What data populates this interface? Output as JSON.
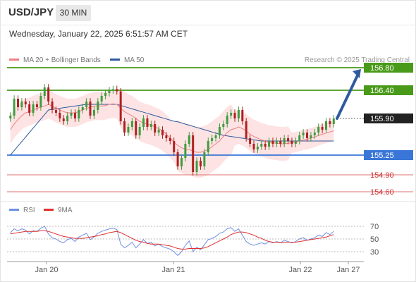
{
  "header": {
    "pair": "USD/JPY",
    "timeframe": "30 MIN"
  },
  "datetime": "Wednesday, January 22, 2025 6:51:57 AM CET",
  "legend": {
    "ma20": "MA 20 + Bollinger Bands",
    "ma50": "MA 50",
    "copyright": "Research © 2025 Trading Central"
  },
  "rsi_legend": {
    "rsi": "RSI",
    "ma": "9MA"
  },
  "colors": {
    "ma20": "#f08080",
    "ma50": "#2f5a9e",
    "bollinger_fill": "#fde3e3",
    "up_candle": "#3f9c3f",
    "down_candle": "#b02020",
    "resistance": "#4a9a1a",
    "pivot": "#3a76d8",
    "support": "#e07070",
    "arrow": "#2f5a9e",
    "rsi_line": "#6f8fe0",
    "rsi_ma": "#e03030"
  },
  "chart_data": {
    "type": "candlestick",
    "x_tick_labels": [
      "Jan 20",
      "Jan 21",
      "Jan 22",
      "Jan 27"
    ],
    "y_range": [
      154.5,
      156.9
    ],
    "levels": [
      {
        "label": "156.80",
        "value": 156.8,
        "kind": "resistance"
      },
      {
        "label": "156.40",
        "value": 156.4,
        "kind": "resistance"
      },
      {
        "label": "155.90",
        "value": 155.9,
        "kind": "last"
      },
      {
        "label": "155.25",
        "value": 155.25,
        "kind": "pivot"
      },
      {
        "label": "154.90",
        "value": 154.9,
        "kind": "support"
      },
      {
        "label": "154.60",
        "value": 154.6,
        "kind": "support"
      }
    ],
    "close_series": [
      155.95,
      156.25,
      156.1,
      156.2,
      156.15,
      156.0,
      156.15,
      156.1,
      156.3,
      156.45,
      156.2,
      156.05,
      156.0,
      155.9,
      155.85,
      155.95,
      156.0,
      155.9,
      156.05,
      156.1,
      156.2,
      155.95,
      156.05,
      156.2,
      156.3,
      156.35,
      156.4,
      156.42,
      156.38,
      155.85,
      155.65,
      155.75,
      155.85,
      155.6,
      155.75,
      155.9,
      155.75,
      155.8,
      155.65,
      155.7,
      155.6,
      155.55,
      155.5,
      155.3,
      155.05,
      155.2,
      155.45,
      155.6,
      154.95,
      155.15,
      155.05,
      155.3,
      155.5,
      155.55,
      155.6,
      155.75,
      155.8,
      155.95,
      156.0,
      155.9,
      156.05,
      155.85,
      155.55,
      155.45,
      155.35,
      155.4,
      155.45,
      155.4,
      155.5,
      155.45,
      155.5,
      155.45,
      155.55,
      155.5,
      155.45,
      155.5,
      155.6,
      155.65,
      155.55,
      155.6,
      155.65,
      155.75,
      155.7,
      155.85,
      155.8,
      155.9
    ],
    "ma20_series": [
      155.7,
      155.8,
      155.88,
      155.95,
      156.0,
      156.02,
      156.05,
      156.08,
      156.1,
      156.12,
      156.15,
      156.12,
      156.08,
      156.05,
      156.02,
      156.0,
      156.0,
      156.0,
      156.02,
      156.05,
      156.08,
      156.1,
      156.12,
      156.12,
      156.12,
      156.13,
      156.15,
      156.16,
      156.15,
      156.08,
      156.02,
      155.98,
      155.95,
      155.9,
      155.85,
      155.82,
      155.8,
      155.78,
      155.75,
      155.72,
      155.68,
      155.62,
      155.55,
      155.48,
      155.42,
      155.38,
      155.35,
      155.35,
      155.32,
      155.3,
      155.3,
      155.32,
      155.35,
      155.4,
      155.45,
      155.5,
      155.58,
      155.65,
      155.7,
      155.72,
      155.75,
      155.72,
      155.68,
      155.62,
      155.58,
      155.55,
      155.52,
      155.5,
      155.48,
      155.47,
      155.46,
      155.45,
      155.45,
      155.46,
      155.47,
      155.48,
      155.5,
      155.52,
      155.53,
      155.55,
      155.57,
      155.6,
      155.62,
      155.64,
      155.66,
      155.68
    ],
    "bollinger_width_series": [
      0.25,
      0.25,
      0.25,
      0.25,
      0.25,
      0.25,
      0.25,
      0.25,
      0.25,
      0.25,
      0.25,
      0.25,
      0.25,
      0.25,
      0.25,
      0.25,
      0.25,
      0.25,
      0.25,
      0.25,
      0.25,
      0.25,
      0.25,
      0.25,
      0.25,
      0.25,
      0.25,
      0.25,
      0.25,
      0.35,
      0.35,
      0.35,
      0.35,
      0.35,
      0.35,
      0.35,
      0.35,
      0.35,
      0.35,
      0.35,
      0.35,
      0.35,
      0.35,
      0.35,
      0.45,
      0.45,
      0.45,
      0.45,
      0.45,
      0.45,
      0.45,
      0.45,
      0.45,
      0.45,
      0.45,
      0.45,
      0.45,
      0.45,
      0.45,
      0.3,
      0.3,
      0.3,
      0.3,
      0.3,
      0.3,
      0.3,
      0.3,
      0.3,
      0.3,
      0.3,
      0.3,
      0.3,
      0.3,
      0.3,
      0.18,
      0.18,
      0.18,
      0.18,
      0.18,
      0.18,
      0.18,
      0.18,
      0.18,
      0.18,
      0.18,
      0.18
    ],
    "ma50_series": [
      155.25,
      155.33,
      155.41,
      155.49,
      155.57,
      155.65,
      155.73,
      155.81,
      155.89,
      155.97,
      156.05,
      156.06,
      156.07,
      156.08,
      156.09,
      156.1,
      156.11,
      156.12,
      156.13,
      156.14,
      156.15,
      156.15,
      156.15,
      156.15,
      156.15,
      156.15,
      156.15,
      156.15,
      156.15,
      156.13,
      156.11,
      156.09,
      156.07,
      156.05,
      156.03,
      156.01,
      155.99,
      155.97,
      155.95,
      155.93,
      155.91,
      155.89,
      155.87,
      155.85,
      155.84,
      155.82,
      155.8,
      155.78,
      155.76,
      155.74,
      155.72,
      155.7,
      155.68,
      155.66,
      155.64,
      155.62,
      155.6,
      155.59,
      155.58,
      155.57,
      155.56,
      155.55,
      155.54,
      155.53,
      155.52,
      155.51,
      155.5,
      155.5,
      155.5,
      155.5,
      155.5,
      155.5,
      155.5,
      155.5,
      155.5,
      155.5,
      155.5,
      155.5,
      155.5,
      155.5,
      155.5,
      155.5,
      155.5,
      155.5,
      155.5,
      155.5
    ],
    "projection": {
      "from": 155.9,
      "to": 156.8
    },
    "rsi": {
      "y_ticks": [
        70,
        50,
        30
      ],
      "y_range": [
        20,
        80
      ],
      "rsi_series": [
        60,
        66,
        63,
        66,
        64,
        58,
        63,
        62,
        67,
        70,
        58,
        52,
        50,
        46,
        44,
        49,
        51,
        46,
        53,
        56,
        59,
        49,
        53,
        59,
        62,
        64,
        66,
        67,
        65,
        42,
        36,
        40,
        45,
        36,
        42,
        49,
        43,
        45,
        39,
        42,
        38,
        36,
        34,
        30,
        24,
        30,
        40,
        47,
        30,
        37,
        33,
        41,
        49,
        51,
        54,
        59,
        61,
        66,
        68,
        62,
        66,
        56,
        46,
        42,
        40,
        42,
        44,
        42,
        46,
        44,
        46,
        44,
        48,
        46,
        44,
        46,
        50,
        52,
        48,
        50,
        52,
        56,
        54,
        60,
        57,
        62
      ],
      "ma_series": [
        58,
        59,
        60,
        61,
        62,
        62,
        62,
        62,
        63,
        63,
        62,
        60,
        58,
        56,
        54,
        53,
        52,
        51,
        51,
        51,
        52,
        53,
        54,
        55,
        57,
        58,
        60,
        61,
        62,
        60,
        57,
        54,
        51,
        48,
        46,
        45,
        43,
        42,
        42,
        42,
        41,
        40,
        39,
        37,
        35,
        34,
        34,
        35,
        35,
        35,
        35,
        36,
        38,
        41,
        44,
        47,
        50,
        53,
        57,
        59,
        61,
        61,
        60,
        58,
        56,
        53,
        51,
        48,
        46,
        45,
        45,
        44,
        45,
        45,
        45,
        45,
        46,
        47,
        48,
        49,
        50,
        51,
        52,
        53,
        55,
        57
      ]
    }
  }
}
